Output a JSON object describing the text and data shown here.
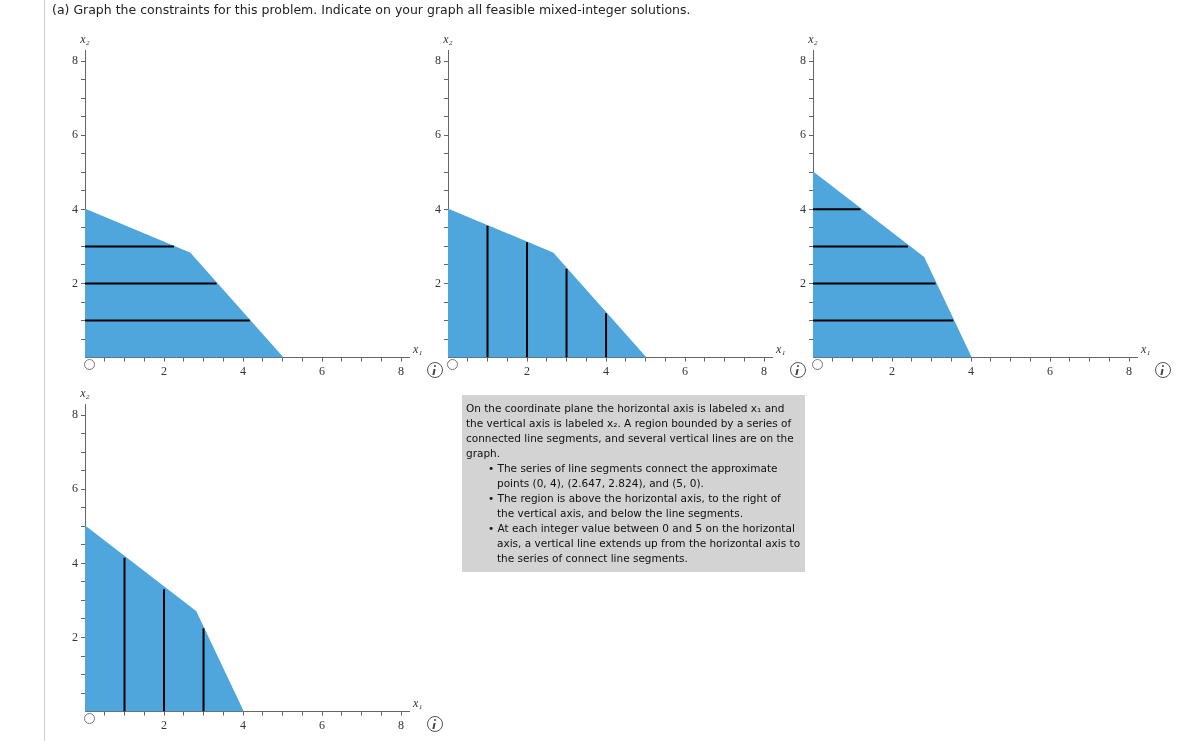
{
  "chart_data": [
    {
      "type": "area",
      "title": "(a) Graph the constraints for this problem. Indicate on your graph all feasible mixed-integer solutions.",
      "xlabel": "x₁",
      "ylabel": "x₂",
      "xlim": [
        0,
        8.2
      ],
      "ylim": [
        0,
        8.3
      ],
      "xticks": [
        {
          "value": 0.5,
          "label": null
        },
        {
          "value": 1,
          "label": null
        },
        {
          "value": 1.5,
          "label": null
        },
        2,
        {
          "value": 2.5,
          "label": null
        },
        {
          "value": 3,
          "label": null
        },
        {
          "value": 3.5,
          "label": null
        },
        4,
        {
          "value": 4.5,
          "label": null
        },
        {
          "value": 5,
          "label": null
        },
        {
          "value": 5.5,
          "label": null
        },
        6,
        {
          "value": 6.5,
          "label": null
        },
        {
          "value": 7,
          "label": null
        },
        {
          "value": 7.5,
          "label": null
        },
        8
      ],
      "yticks": [
        {
          "value": 0.5,
          "label": null
        },
        {
          "value": 1,
          "label": null
        },
        {
          "value": 1.5,
          "label": null
        },
        2,
        {
          "value": 2.5,
          "label": null
        },
        {
          "value": 3,
          "label": null
        },
        {
          "value": 3.5,
          "label": null
        },
        4,
        {
          "value": 4.5,
          "label": null
        },
        {
          "value": 5,
          "label": null
        },
        {
          "value": 5.5,
          "label": null
        },
        6,
        {
          "value": 6.5,
          "label": null
        },
        {
          "value": 7,
          "label": null
        },
        {
          "value": 7.5,
          "label": null
        },
        8
      ],
      "series": [
        {
          "type": "area",
          "color": "#4fa6dc",
          "x": [
            0,
            2.65,
            5
          ],
          "values": [
            4,
            2.82,
            0
          ]
        },
        {
          "type": "line",
          "color": "#000000",
          "x": [
            0,
            2.25
          ],
          "values": [
            3,
            3
          ]
        },
        {
          "type": "line",
          "color": "#000000",
          "x": [
            0,
            3.33
          ],
          "values": [
            2,
            2
          ]
        },
        {
          "type": "line",
          "color": "#000000",
          "x": [
            0,
            4.17
          ],
          "values": [
            1,
            1
          ]
        }
      ]
    },
    {
      "type": "area",
      "xlabel": "x₁",
      "ylabel": "x₂",
      "xlim": [
        0,
        8.2
      ],
      "ylim": [
        0,
        8.3
      ],
      "xticks": [
        {
          "value": 0.5,
          "label": null
        },
        {
          "value": 1,
          "label": null
        },
        {
          "value": 1.5,
          "label": null
        },
        2,
        {
          "value": 2.5,
          "label": null
        },
        {
          "value": 3,
          "label": null
        },
        {
          "value": 3.5,
          "label": null
        },
        4,
        {
          "value": 4.5,
          "label": null
        },
        {
          "value": 5,
          "label": null
        },
        {
          "value": 5.5,
          "label": null
        },
        6,
        {
          "value": 6.5,
          "label": null
        },
        {
          "value": 7,
          "label": null
        },
        {
          "value": 7.5,
          "label": null
        },
        8
      ],
      "yticks": [
        {
          "value": 0.5,
          "label": null
        },
        {
          "value": 1,
          "label": null
        },
        {
          "value": 1.5,
          "label": null
        },
        2,
        {
          "value": 2.5,
          "label": null
        },
        {
          "value": 3,
          "label": null
        },
        {
          "value": 3.5,
          "label": null
        },
        4,
        {
          "value": 4.5,
          "label": null
        },
        {
          "value": 5,
          "label": null
        },
        {
          "value": 5.5,
          "label": null
        },
        6,
        {
          "value": 6.5,
          "label": null
        },
        {
          "value": 7,
          "label": null
        },
        {
          "value": 7.5,
          "label": null
        },
        8
      ],
      "series": [
        {
          "type": "area",
          "color": "#4fa6dc",
          "x": [
            0,
            2.65,
            5
          ],
          "values": [
            4,
            2.82,
            0
          ]
        },
        {
          "type": "line",
          "color": "#000000",
          "x": [
            1,
            1
          ],
          "values": [
            0,
            3.56
          ]
        },
        {
          "type": "line",
          "color": "#000000",
          "x": [
            2,
            2
          ],
          "values": [
            0,
            3.11
          ]
        },
        {
          "type": "line",
          "color": "#000000",
          "x": [
            3,
            3
          ],
          "values": [
            0,
            2.4
          ]
        },
        {
          "type": "line",
          "color": "#000000",
          "x": [
            4,
            4
          ],
          "values": [
            0,
            1.2
          ]
        }
      ],
      "annotations": [
        "On the coordinate plane the horizontal axis is labeled x₁ and the vertical axis is labeled x₂. A region bounded by a series of connected line segments, and several vertical lines are on the graph.",
        "• The series of line segments connect the approximate points (0, 4), (2.647, 2.824), and (5, 0).",
        "• The region is above the horizontal axis, to the right of the vertical axis, and below the line segments.",
        "• At each integer value between 0 and 5 on the horizontal axis, a vertical line extends up from the horizontal axis to the series of connect line segments."
      ]
    },
    {
      "type": "area",
      "xlabel": "x₁",
      "ylabel": "x₂",
      "xlim": [
        0,
        8.2
      ],
      "ylim": [
        0,
        8.3
      ],
      "xticks": [
        {
          "value": 0.5,
          "label": null
        },
        {
          "value": 1,
          "label": null
        },
        {
          "value": 1.5,
          "label": null
        },
        2,
        {
          "value": 2.5,
          "label": null
        },
        {
          "value": 3,
          "label": null
        },
        {
          "value": 3.5,
          "label": null
        },
        4,
        {
          "value": 4.5,
          "label": null
        },
        {
          "value": 5,
          "label": null
        },
        {
          "value": 5.5,
          "label": null
        },
        6,
        {
          "value": 6.5,
          "label": null
        },
        {
          "value": 7,
          "label": null
        },
        {
          "value": 7.5,
          "label": null
        },
        8
      ],
      "yticks": [
        {
          "value": 0.5,
          "label": null
        },
        {
          "value": 1,
          "label": null
        },
        {
          "value": 1.5,
          "label": null
        },
        2,
        {
          "value": 2.5,
          "label": null
        },
        {
          "value": 3,
          "label": null
        },
        {
          "value": 3.5,
          "label": null
        },
        4,
        {
          "value": 4.5,
          "label": null
        },
        {
          "value": 5,
          "label": null
        },
        {
          "value": 5.5,
          "label": null
        },
        6,
        {
          "value": 6.5,
          "label": null
        },
        {
          "value": 7,
          "label": null
        },
        {
          "value": 7.5,
          "label": null
        },
        8
      ],
      "series": [
        {
          "type": "area",
          "color": "#4fa6dc",
          "x": [
            0,
            2.8,
            4
          ],
          "values": [
            5,
            2.7,
            0
          ]
        },
        {
          "type": "line",
          "color": "#000000",
          "x": [
            0,
            1.2
          ],
          "values": [
            4,
            4
          ]
        },
        {
          "type": "line",
          "color": "#000000",
          "x": [
            0,
            2.4
          ],
          "values": [
            3,
            3
          ]
        },
        {
          "type": "line",
          "color": "#000000",
          "x": [
            0,
            3.1
          ],
          "values": [
            2,
            2
          ]
        },
        {
          "type": "line",
          "color": "#000000",
          "x": [
            0,
            3.55
          ],
          "values": [
            1,
            1
          ]
        }
      ]
    },
    {
      "type": "area",
      "xlabel": "x₁",
      "ylabel": "x₂",
      "xlim": [
        0,
        8.2
      ],
      "ylim": [
        0,
        8.3
      ],
      "xticks": [
        {
          "value": 0.5,
          "label": null
        },
        {
          "value": 1,
          "label": null
        },
        {
          "value": 1.5,
          "label": null
        },
        2,
        {
          "value": 2.5,
          "label": null
        },
        {
          "value": 3,
          "label": null
        },
        {
          "value": 3.5,
          "label": null
        },
        4,
        {
          "value": 4.5,
          "label": null
        },
        {
          "value": 5,
          "label": null
        },
        {
          "value": 5.5,
          "label": null
        },
        6,
        {
          "value": 6.5,
          "label": null
        },
        {
          "value": 7,
          "label": null
        },
        {
          "value": 7.5,
          "label": null
        },
        8
      ],
      "yticks": [
        {
          "value": 0.5,
          "label": null
        },
        {
          "value": 1,
          "label": null
        },
        {
          "value": 1.5,
          "label": null
        },
        2,
        {
          "value": 2.5,
          "label": null
        },
        {
          "value": 3,
          "label": null
        },
        {
          "value": 3.5,
          "label": null
        },
        4,
        {
          "value": 4.5,
          "label": null
        },
        {
          "value": 5,
          "label": null
        },
        {
          "value": 5.5,
          "label": null
        },
        6,
        {
          "value": 6.5,
          "label": null
        },
        {
          "value": 7,
          "label": null
        },
        {
          "value": 7.5,
          "label": null
        },
        8
      ],
      "series": [
        {
          "type": "area",
          "color": "#4fa6dc",
          "x": [
            0,
            2.8,
            4
          ],
          "values": [
            5,
            2.7,
            0
          ]
        },
        {
          "type": "line",
          "color": "#000000",
          "x": [
            1,
            1
          ],
          "values": [
            0,
            4.15
          ]
        },
        {
          "type": "line",
          "color": "#000000",
          "x": [
            2,
            2
          ],
          "values": [
            0,
            3.3
          ]
        },
        {
          "type": "line",
          "color": "#000000",
          "x": [
            3,
            3
          ],
          "values": [
            0,
            2.25
          ]
        }
      ]
    }
  ]
}
